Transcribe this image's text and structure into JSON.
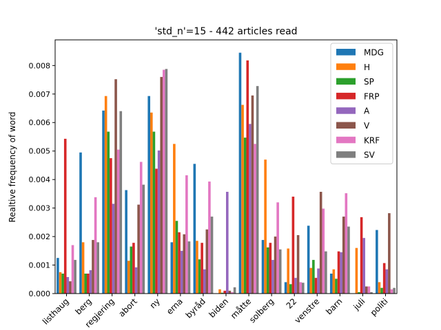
{
  "chart_data": {
    "type": "bar",
    "title": "'std_n'=15 - 442 articles read",
    "xlabel": "",
    "ylabel": "Realtive frequency of word",
    "ylim": [
      0,
      0.0089
    ],
    "yticks": [
      "0.000",
      "0.001",
      "0.002",
      "0.003",
      "0.004",
      "0.005",
      "0.006",
      "0.007",
      "0.008"
    ],
    "grid": false,
    "legend_position": "upper right",
    "categories": [
      "listhaug",
      "berg",
      "regjering",
      "abort",
      "ny",
      "erna",
      "byråd",
      "biden",
      "måtte",
      "solberg",
      "22",
      "venstre",
      "barn",
      "juli",
      "politi"
    ],
    "series": [
      {
        "name": "MDG",
        "color": "#1f77b4",
        "values": [
          0.00125,
          0.00495,
          0.00642,
          0.00363,
          0.00693,
          0.0018,
          0.00455,
          0.0,
          0.00845,
          0.00188,
          0.0004,
          0.00238,
          0.0007,
          0.0,
          0.00223
        ]
      },
      {
        "name": "H",
        "color": "#ff7f0e",
        "values": [
          0.00075,
          0.0018,
          0.00693,
          0.00115,
          0.00635,
          0.00525,
          0.00185,
          0.00015,
          0.00662,
          0.0047,
          0.00158,
          0.0009,
          0.00085,
          0.0016,
          0.0004
        ]
      },
      {
        "name": "SP",
        "color": "#2ca02c",
        "values": [
          0.0007,
          0.0007,
          0.00568,
          0.00165,
          0.00568,
          0.00255,
          0.0012,
          3e-05,
          0.00547,
          0.00162,
          0.00033,
          0.00118,
          0.00052,
          5e-05,
          0.0002
        ]
      },
      {
        "name": "FRP",
        "color": "#d62728",
        "values": [
          0.00543,
          0.0007,
          0.00475,
          0.00178,
          0.00438,
          0.00215,
          0.00178,
          0.0001,
          0.00818,
          0.00178,
          0.0034,
          0.00055,
          0.00148,
          0.00268,
          0.00107
        ]
      },
      {
        "name": "A",
        "color": "#9467bd",
        "values": [
          0.00058,
          0.00082,
          0.00315,
          0.00092,
          0.00502,
          0.0015,
          0.00085,
          0.00357,
          0.00595,
          0.00118,
          0.00055,
          0.00088,
          0.00145,
          0.00195,
          0.00085
        ]
      },
      {
        "name": "V",
        "color": "#8c564b",
        "values": [
          0.00043,
          0.00188,
          0.00752,
          0.00312,
          0.0076,
          0.00208,
          0.00225,
          0.0001,
          0.00695,
          0.002,
          0.00205,
          0.00357,
          0.0027,
          0.00025,
          0.00282
        ]
      },
      {
        "name": "KRF",
        "color": "#e377c2",
        "values": [
          0.0017,
          0.00338,
          0.00505,
          0.00462,
          0.00785,
          0.00415,
          0.00393,
          5e-05,
          0.00525,
          0.0032,
          0.0004,
          0.00298,
          0.00352,
          0.00025,
          0.00015
        ]
      },
      {
        "name": "SV",
        "color": "#7f7f7f",
        "values": [
          0.00118,
          0.0018,
          0.0064,
          0.00382,
          0.00788,
          0.00183,
          0.0027,
          0.00022,
          0.00728,
          0.00155,
          0.00038,
          0.00148,
          0.00235,
          5e-05,
          0.0002
        ]
      }
    ]
  }
}
